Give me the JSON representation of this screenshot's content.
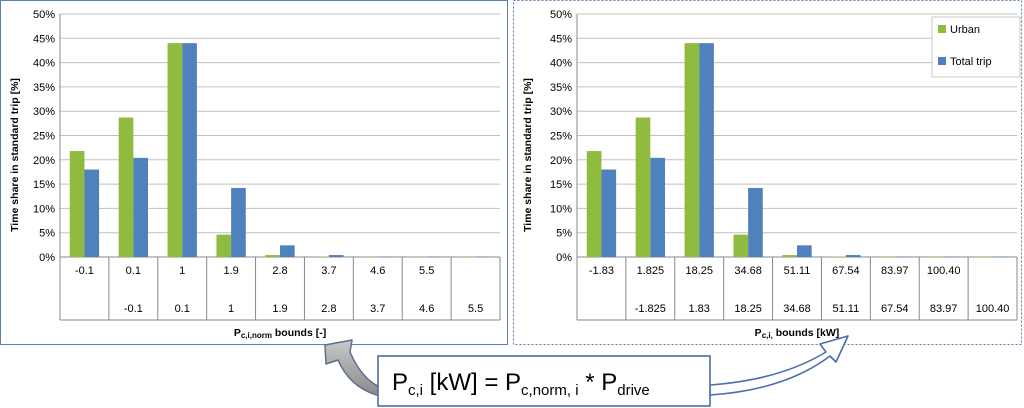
{
  "equation": {
    "lhs_main": "P",
    "lhs_sub": "c,i",
    "unit": " [kW] = ",
    "rhs_main": "P",
    "rhs_sub": "c,norm, i",
    "times": " * ",
    "rhs2_main": "P",
    "rhs2_sub": "drive"
  },
  "chart_data": [
    {
      "type": "bar",
      "title": "",
      "ylabel": "Time share in standard trip [%]",
      "xlabel_main": "P",
      "xlabel_sub": "c,i,norm",
      "xlabel_rest": " bounds [-]",
      "ylim": [
        0,
        50
      ],
      "yticks": [
        "0%",
        "5%",
        "10%",
        "15%",
        "20%",
        "25%",
        "30%",
        "35%",
        "40%",
        "45%",
        "50%"
      ],
      "grid": true,
      "legend": "none",
      "categories_upper": [
        "-0.1",
        "0.1",
        "1",
        "1.9",
        "2.8",
        "3.7",
        "4.6",
        "5.5",
        ""
      ],
      "categories_lower": [
        "",
        "-0.1",
        "0.1",
        "1",
        "1.9",
        "2.8",
        "3.7",
        "4.6",
        "5.5"
      ],
      "series": [
        {
          "name": "Urban",
          "color": "#8fbc3f",
          "values": [
            21.8,
            28.7,
            44.0,
            4.6,
            0.4,
            0.1,
            0.05,
            0.05,
            0.05
          ]
        },
        {
          "name": "Total trip",
          "color": "#4f81bd",
          "values": [
            18.0,
            20.4,
            44.0,
            14.2,
            2.4,
            0.4,
            0.1,
            0.1,
            0.1
          ]
        }
      ]
    },
    {
      "type": "bar",
      "title": "",
      "ylabel": "Time share in standard trip [%]",
      "xlabel_main": "P",
      "xlabel_sub": "c,i,",
      "xlabel_rest": " bounds [kW]",
      "ylim": [
        0,
        50
      ],
      "yticks": [
        "0%",
        "5%",
        "10%",
        "15%",
        "20%",
        "25%",
        "30%",
        "35%",
        "40%",
        "45%",
        "50%"
      ],
      "grid": true,
      "legend": "top-right",
      "categories_upper": [
        "-1.83",
        "1.825",
        "18.25",
        "34.68",
        "51.11",
        "67.54",
        "83.97",
        "100.40",
        ""
      ],
      "categories_lower": [
        "",
        "-1.825",
        "1.83",
        "18.25",
        "34.68",
        "51.11",
        "67.54",
        "83.97",
        "100.40"
      ],
      "series": [
        {
          "name": "Urban",
          "color": "#8fbc3f",
          "values": [
            21.8,
            28.7,
            44.0,
            4.6,
            0.4,
            0.1,
            0.05,
            0.05,
            0.05
          ]
        },
        {
          "name": "Total trip",
          "color": "#4f81bd",
          "values": [
            18.0,
            20.4,
            44.0,
            14.2,
            2.4,
            0.4,
            0.1,
            0.1,
            0.1
          ]
        }
      ]
    }
  ]
}
